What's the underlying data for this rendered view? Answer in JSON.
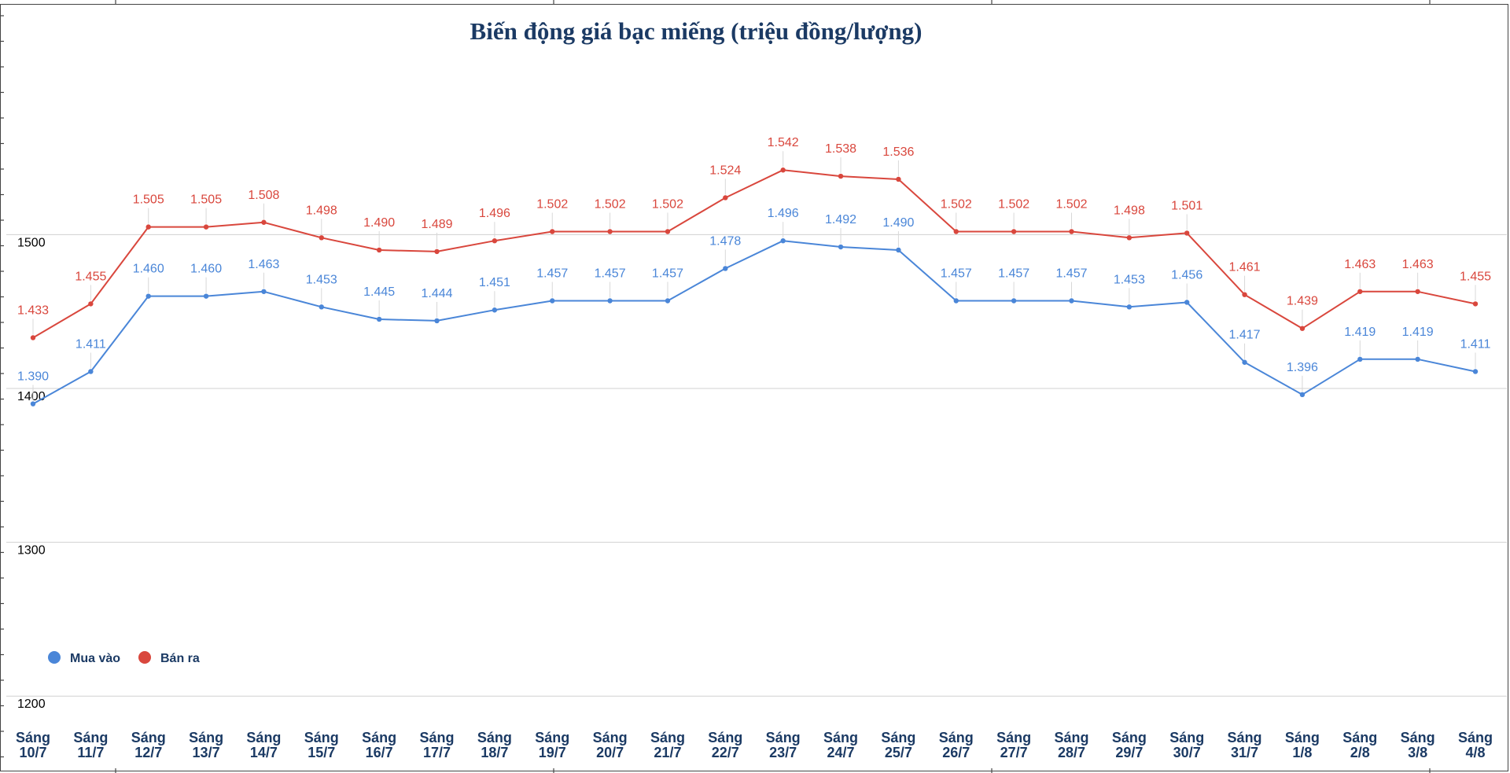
{
  "chart_data": {
    "type": "line",
    "title": "Biến động giá bạc miếng (triệu đồng/lượng)",
    "xlabel": "",
    "ylabel": "",
    "ylim": [
      1150,
      1650
    ],
    "yticks": [
      1200,
      1300,
      1400,
      1500
    ],
    "grid": true,
    "legend_position": "bottom-left",
    "categories": [
      [
        "Sáng",
        "10/7"
      ],
      [
        "Sáng",
        "11/7"
      ],
      [
        "Sáng",
        "12/7"
      ],
      [
        "Sáng",
        "13/7"
      ],
      [
        "Sáng",
        "14/7"
      ],
      [
        "Sáng",
        "15/7"
      ],
      [
        "Sáng",
        "16/7"
      ],
      [
        "Sáng",
        "17/7"
      ],
      [
        "Sáng",
        "18/7"
      ],
      [
        "Sáng",
        "19/7"
      ],
      [
        "Sáng",
        "20/7"
      ],
      [
        "Sáng",
        "21/7"
      ],
      [
        "Sáng",
        "22/7"
      ],
      [
        "Sáng",
        "23/7"
      ],
      [
        "Sáng",
        "24/7"
      ],
      [
        "Sáng",
        "25/7"
      ],
      [
        "Sáng",
        "26/7"
      ],
      [
        "Sáng",
        "27/7"
      ],
      [
        "Sáng",
        "28/7"
      ],
      [
        "Sáng",
        "29/7"
      ],
      [
        "Sáng",
        "30/7"
      ],
      [
        "Sáng",
        "31/7"
      ],
      [
        "Sáng",
        "1/8"
      ],
      [
        "Sáng",
        "2/8"
      ],
      [
        "Sáng",
        "3/8"
      ],
      [
        "Sáng",
        "4/8"
      ]
    ],
    "series": [
      {
        "name": "Mua vào",
        "color": "#4a86d8",
        "values": [
          1390,
          1411,
          1460,
          1460,
          1463,
          1453,
          1445,
          1444,
          1451,
          1457,
          1457,
          1457,
          1478,
          1496,
          1492,
          1490,
          1457,
          1457,
          1457,
          1453,
          1456,
          1417,
          1396,
          1419,
          1419,
          1411
        ],
        "labels": [
          "1.390",
          "1.411",
          "1.460",
          "1.460",
          "1.463",
          "1.453",
          "1.445",
          "1.444",
          "1.451",
          "1.457",
          "1.457",
          "1.457",
          "1.478",
          "1.496",
          "1.492",
          "1.490",
          "1.457",
          "1.457",
          "1.457",
          "1.453",
          "1.456",
          "1.417",
          "1.396",
          "1.419",
          "1.419",
          "1.411"
        ]
      },
      {
        "name": "Bán ra",
        "color": "#d9473d",
        "values": [
          1433,
          1455,
          1505,
          1505,
          1508,
          1498,
          1490,
          1489,
          1496,
          1502,
          1502,
          1502,
          1524,
          1542,
          1538,
          1536,
          1502,
          1502,
          1502,
          1498,
          1501,
          1461,
          1439,
          1463,
          1463,
          1455
        ],
        "labels": [
          "1.433",
          "1.455",
          "1.505",
          "1.505",
          "1.508",
          "1.498",
          "1.490",
          "1.489",
          "1.496",
          "1.502",
          "1.502",
          "1.502",
          "1.524",
          "1.542",
          "1.538",
          "1.536",
          "1.502",
          "1.502",
          "1.502",
          "1.498",
          "1.501",
          "1.461",
          "1.439",
          "1.463",
          "1.463",
          "1.455"
        ]
      }
    ]
  }
}
